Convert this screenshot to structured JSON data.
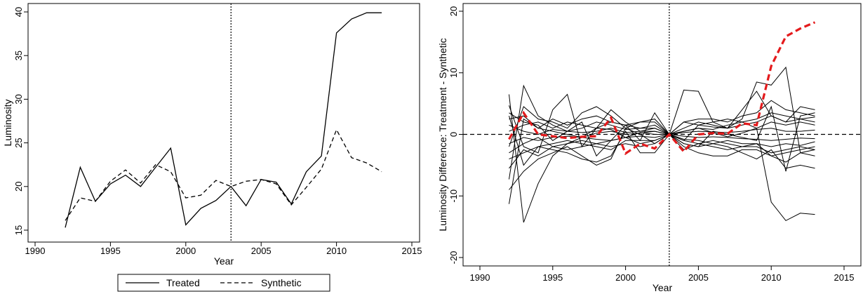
{
  "chart_data": [
    {
      "type": "line",
      "title": "",
      "xlabel": "Year",
      "ylabel": "Luminosity",
      "xlim": [
        1990,
        2015
      ],
      "ylim": [
        15,
        40
      ],
      "xticks": [
        1990,
        1995,
        2000,
        2005,
        2010,
        2015
      ],
      "yticks": [
        15,
        20,
        25,
        30,
        35,
        40
      ],
      "reference_line": {
        "axis": "x",
        "value": 2003,
        "style": "dotted"
      },
      "x": [
        1992,
        1993,
        1994,
        1995,
        1996,
        1997,
        1998,
        1999,
        2000,
        2001,
        2002,
        2003,
        2004,
        2005,
        2006,
        2007,
        2008,
        2009,
        2010,
        2011,
        2012,
        2013
      ],
      "series": [
        {
          "name": "Treated",
          "style": "solid",
          "values": [
            15.3,
            22.2,
            18.3,
            20.3,
            21.3,
            20.0,
            22.2,
            24.4,
            15.6,
            17.5,
            18.4,
            20.0,
            17.8,
            20.8,
            20.5,
            18.0,
            21.7,
            23.5,
            37.6,
            39.2,
            39.9,
            39.9
          ]
        },
        {
          "name": "Synthetic",
          "style": "dashed",
          "values": [
            16.1,
            18.7,
            18.3,
            20.6,
            21.9,
            20.4,
            22.5,
            21.7,
            18.7,
            19.0,
            20.7,
            20.0,
            20.6,
            20.8,
            20.3,
            17.9,
            19.9,
            22.0,
            26.5,
            23.3,
            22.7,
            21.7
          ]
        }
      ],
      "legend": {
        "position": "bottom",
        "entries": [
          "Treated",
          "Synthetic"
        ]
      }
    },
    {
      "type": "line",
      "title": "",
      "xlabel": "Year",
      "ylabel": "Luminosity Difference: Treatment - Synthetic",
      "xlim": [
        1990,
        2015
      ],
      "ylim": [
        -20,
        20
      ],
      "xticks": [
        1990,
        1995,
        2000,
        2005,
        2010,
        2015
      ],
      "yticks": [
        -20,
        -10,
        0,
        10,
        20
      ],
      "reference_lines": [
        {
          "axis": "x",
          "value": 2003,
          "style": "dotted"
        },
        {
          "axis": "y",
          "value": 0,
          "style": "dashed"
        }
      ],
      "x": [
        1992,
        1993,
        1994,
        1995,
        1996,
        1997,
        1998,
        1999,
        2000,
        2001,
        2002,
        2003,
        2004,
        2005,
        2006,
        2007,
        2008,
        2009,
        2010,
        2011,
        2012,
        2013
      ],
      "treated_series": {
        "color": "#e41a1c",
        "style": "dashed",
        "values": [
          -0.8,
          3.5,
          0.0,
          -0.3,
          -0.6,
          -0.4,
          -0.3,
          2.7,
          -3.1,
          -1.5,
          -2.3,
          0.0,
          -2.8,
          0.0,
          0.2,
          0.1,
          1.8,
          1.5,
          11.1,
          15.9,
          17.2,
          18.2
        ]
      },
      "placebo_series": [
        {
          "values": [
            -11.3,
            2.5,
            1.0,
            0.5,
            0.0,
            -0.5,
            1.0,
            0.8,
            -0.5,
            0.3,
            0.0,
            0.0,
            0.5,
            1.0,
            0.3,
            -0.4,
            0.2,
            1.0,
            -11.0,
            -14.0,
            -12.8,
            -13.0
          ]
        },
        {
          "values": [
            6.5,
            -14.3,
            -8.0,
            -3.5,
            -1.5,
            -0.5,
            0.2,
            0.5,
            0.0,
            0.2,
            0.5,
            0.0,
            7.2,
            7.0,
            2.0,
            1.0,
            2.5,
            8.5,
            8.0,
            10.9,
            -3.0,
            -2.5
          ]
        },
        {
          "values": [
            4.7,
            -2.0,
            -3.0,
            4.0,
            6.5,
            -2.0,
            1.0,
            4.0,
            2.0,
            0.5,
            1.0,
            0.0,
            -1.0,
            1.5,
            1.2,
            1.0,
            4.0,
            7.0,
            3.0,
            2.0,
            4.5,
            4.0
          ]
        },
        {
          "values": [
            -7.3,
            7.9,
            3.0,
            1.5,
            0.5,
            2.0,
            -3.5,
            -1.0,
            1.5,
            -1.0,
            3.5,
            0.0,
            -1.5,
            -2.0,
            0.5,
            0.0,
            -0.5,
            -1.0,
            4.5,
            -6.0,
            3.0,
            3.5
          ]
        },
        {
          "values": [
            3.0,
            -5.0,
            -2.0,
            -2.5,
            -3.0,
            -4.0,
            -4.5,
            -3.5,
            0.5,
            -3.0,
            -3.0,
            0.0,
            -2.0,
            -3.0,
            -3.5,
            -3.5,
            -2.5,
            -2.5,
            -3.5,
            -4.5,
            -3.0,
            -3.5
          ]
        },
        {
          "values": [
            -2.0,
            4.5,
            2.5,
            2.0,
            1.0,
            3.5,
            4.5,
            3.0,
            1.0,
            2.0,
            2.0,
            0.0,
            2.0,
            2.5,
            2.5,
            2.0,
            3.0,
            3.5,
            5.5,
            4.0,
            3.5,
            3.0
          ]
        },
        {
          "values": [
            -9.0,
            -6.0,
            -4.0,
            -3.0,
            -2.0,
            -3.5,
            -5.0,
            -4.0,
            1.0,
            0.0,
            -1.5,
            0.0,
            -1.5,
            -2.0,
            -1.5,
            -2.0,
            -3.0,
            -4.0,
            -2.5,
            -5.5,
            -5.0,
            -5.5
          ]
        },
        {
          "values": [
            1.5,
            0.5,
            0.0,
            0.8,
            0.5,
            0.3,
            0.5,
            1.0,
            0.3,
            0.5,
            0.5,
            0.0,
            0.3,
            0.5,
            0.4,
            0.3,
            0.5,
            0.8,
            1.0,
            0.5,
            0.5,
            0.7
          ]
        },
        {
          "values": [
            -1.5,
            -0.5,
            -1.0,
            -0.5,
            -0.3,
            -0.5,
            -0.8,
            -1.0,
            -0.5,
            -0.3,
            -0.5,
            0.0,
            -0.3,
            -0.5,
            -0.4,
            -0.5,
            -0.7,
            -0.8,
            -1.0,
            -0.8,
            -0.6,
            -0.7
          ]
        },
        {
          "values": [
            3.5,
            2.0,
            1.5,
            -1.0,
            0.5,
            1.0,
            2.0,
            1.5,
            0.8,
            1.0,
            1.0,
            0.0,
            0.5,
            1.0,
            0.8,
            1.5,
            2.0,
            1.0,
            2.0,
            1.5,
            2.0,
            1.5
          ]
        },
        {
          "values": [
            -4.0,
            -3.0,
            -2.0,
            -1.5,
            -1.0,
            -1.5,
            -2.0,
            -2.5,
            -1.0,
            -1.0,
            -1.0,
            0.0,
            -1.0,
            -1.5,
            -1.0,
            -1.5,
            -2.0,
            -2.0,
            -3.0,
            -2.5,
            -2.0,
            -2.5
          ]
        },
        {
          "values": [
            0.5,
            1.5,
            2.0,
            1.0,
            2.0,
            1.5,
            1.0,
            2.0,
            1.5,
            1.0,
            1.5,
            0.0,
            1.0,
            2.0,
            1.5,
            1.0,
            1.5,
            2.0,
            3.0,
            2.0,
            2.5,
            2.0
          ]
        },
        {
          "values": [
            -3.0,
            -1.5,
            -0.5,
            -2.0,
            -1.5,
            -1.0,
            -1.5,
            -1.0,
            -0.5,
            -1.5,
            -1.0,
            0.0,
            -0.8,
            -1.0,
            -1.5,
            -1.0,
            -1.5,
            -1.5,
            -2.0,
            -1.5,
            -1.8,
            -1.2
          ]
        },
        {
          "values": [
            2.5,
            3.0,
            1.0,
            2.5,
            1.5,
            2.5,
            3.0,
            2.0,
            1.5,
            2.0,
            2.5,
            0.0,
            2.0,
            1.5,
            2.0,
            2.5,
            2.0,
            2.5,
            3.5,
            3.0,
            2.5,
            2.8
          ]
        },
        {
          "values": [
            -5.5,
            -2.5,
            -3.5,
            -2.0,
            -2.5,
            -2.0,
            -1.5,
            -2.0,
            -1.5,
            -2.0,
            -1.5,
            0.0,
            -2.5,
            -1.5,
            -2.0,
            -2.5,
            -2.0,
            -1.5,
            -3.5,
            -3.0,
            -2.5,
            -2.0
          ]
        }
      ]
    }
  ]
}
